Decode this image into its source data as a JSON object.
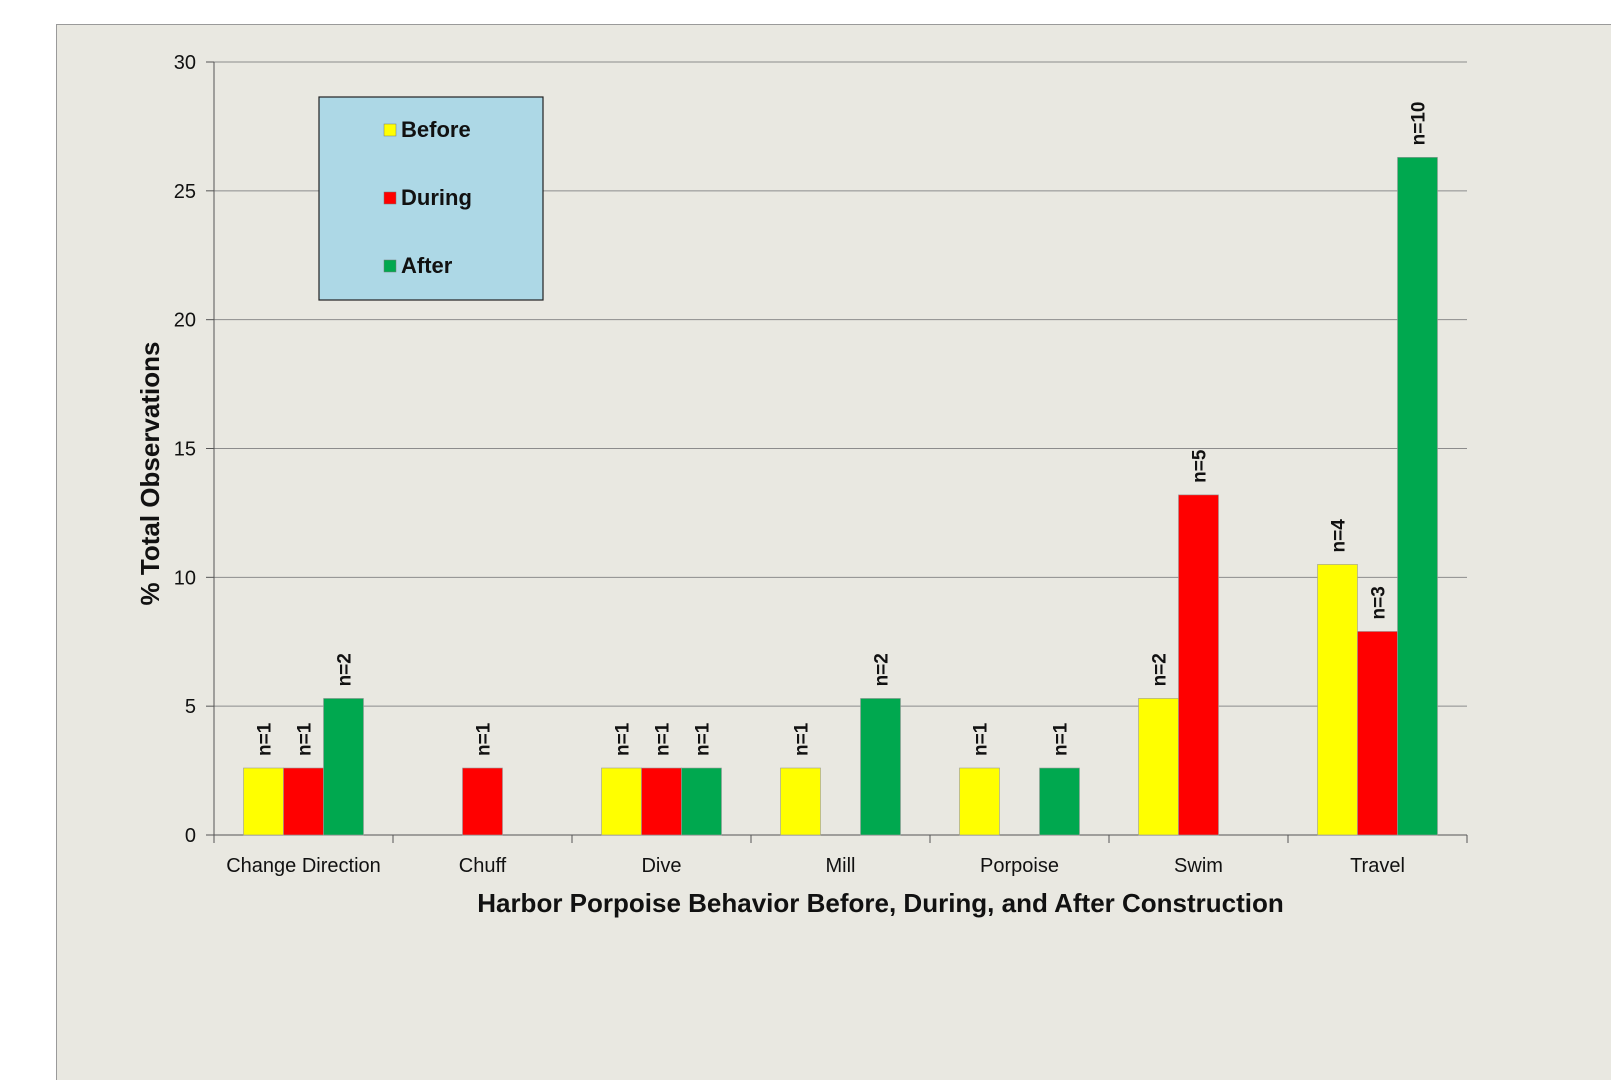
{
  "chart_data": {
    "type": "bar",
    "xlabel": "Harbor Porpoise Behavior Before, During, and After Construction",
    "ylabel": "% Total Observations",
    "ylim": [
      0,
      30
    ],
    "yticks": [
      0,
      5,
      10,
      15,
      20,
      25,
      30
    ],
    "grid": true,
    "legend": "top-left",
    "categories": [
      "Change Direction",
      "Chuff",
      "Dive",
      "Mill",
      "Porpoise",
      "Swim",
      "Travel"
    ],
    "series": [
      {
        "name": "Before",
        "color": "#ffff00",
        "values": [
          2.6,
          null,
          2.6,
          2.6,
          2.6,
          5.3,
          10.5
        ],
        "labels": [
          "n=1",
          null,
          "n=1",
          "n=1",
          "n=1",
          "n=2",
          "n=4"
        ]
      },
      {
        "name": "During",
        "color": "#ff0000",
        "values": [
          2.6,
          2.6,
          2.6,
          null,
          null,
          13.2,
          7.9
        ],
        "labels": [
          "n=1",
          "n=1",
          "n=1",
          null,
          null,
          "n=5",
          "n=3"
        ]
      },
      {
        "name": "After",
        "color": "#00a84f",
        "values": [
          5.3,
          null,
          2.6,
          5.3,
          2.6,
          null,
          26.3
        ],
        "labels": [
          "n=2",
          null,
          "n=1",
          "n=2",
          "n=1",
          null,
          "n=10"
        ]
      }
    ]
  }
}
